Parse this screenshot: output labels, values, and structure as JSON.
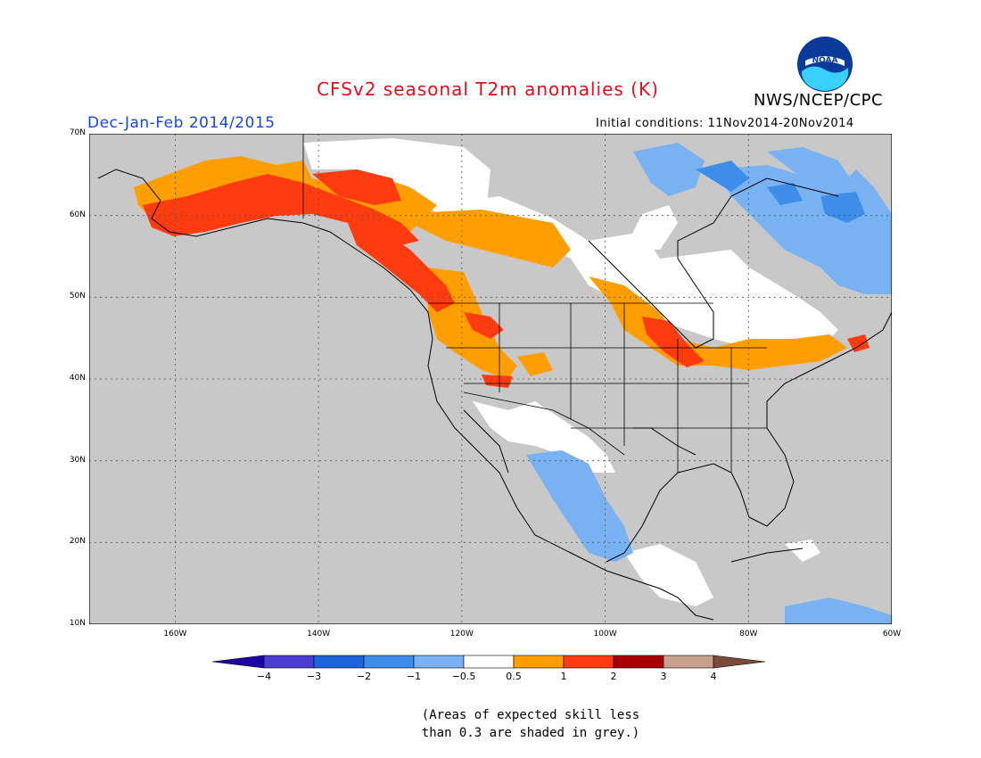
{
  "header": {
    "title": "CFSv2 seasonal T2m anomalies (K)",
    "season": "Dec-Jan-Feb 2014/2015",
    "agency": "NWS/NCEP/CPC",
    "initial_conditions": "Initial conditions: 11Nov2014-20Nov2014",
    "logo_text": "NOAA"
  },
  "map": {
    "projection": "lat-lon",
    "lon_range": [
      -172,
      -60
    ],
    "lat_range": [
      10,
      70
    ],
    "lat_labels": [
      "70N",
      "60N",
      "50N",
      "40N",
      "30N",
      "20N",
      "10N"
    ],
    "lon_labels": [
      "160W",
      "140W",
      "120W",
      "100W",
      "80W",
      "60W"
    ],
    "grid": "dotted",
    "background_color": "#c8c8c8",
    "anomaly_regions": [
      {
        "region": "Alaska",
        "category": "1 to 2"
      },
      {
        "region": "Yukon and western Canada",
        "category": "0.5 to 2"
      },
      {
        "region": "Pacific Northwest",
        "category": "0.5 to 2"
      },
      {
        "region": "Great Lakes",
        "category": "0.5 to 2"
      },
      {
        "region": "Northeast US coast",
        "category": "0.5 to 2"
      },
      {
        "region": "Hudson Bay and central Canada",
        "category": "-0.5 to 0.5"
      },
      {
        "region": "Quebec and Labrador",
        "category": "-1 to -0.5"
      },
      {
        "region": "Baffin Island",
        "category": "-1 to -0.5"
      },
      {
        "region": "Mexico and Texas",
        "category": "-1 to -0.5"
      },
      {
        "region": "Southwest US",
        "category": "-0.5 to 0.5"
      },
      {
        "region": "Caribbean",
        "category": "-1 to -0.5"
      }
    ]
  },
  "colorbar": {
    "labels": [
      "-4",
      "-3",
      "-2",
      "-1",
      "-0.5",
      "0.5",
      "1",
      "2",
      "3",
      "4"
    ],
    "colors": [
      "#1d00a8",
      "#4a3ed0",
      "#1a66d8",
      "#3c8ee8",
      "#78b2f2",
      "#ffffff",
      "#ff9e00",
      "#ff3b10",
      "#a80000",
      "#c8a090",
      "#7a4a3a"
    ]
  },
  "note": {
    "line1": "(Areas of expected skill less",
    "line2": "than 0.3 are shaded in grey.)"
  }
}
